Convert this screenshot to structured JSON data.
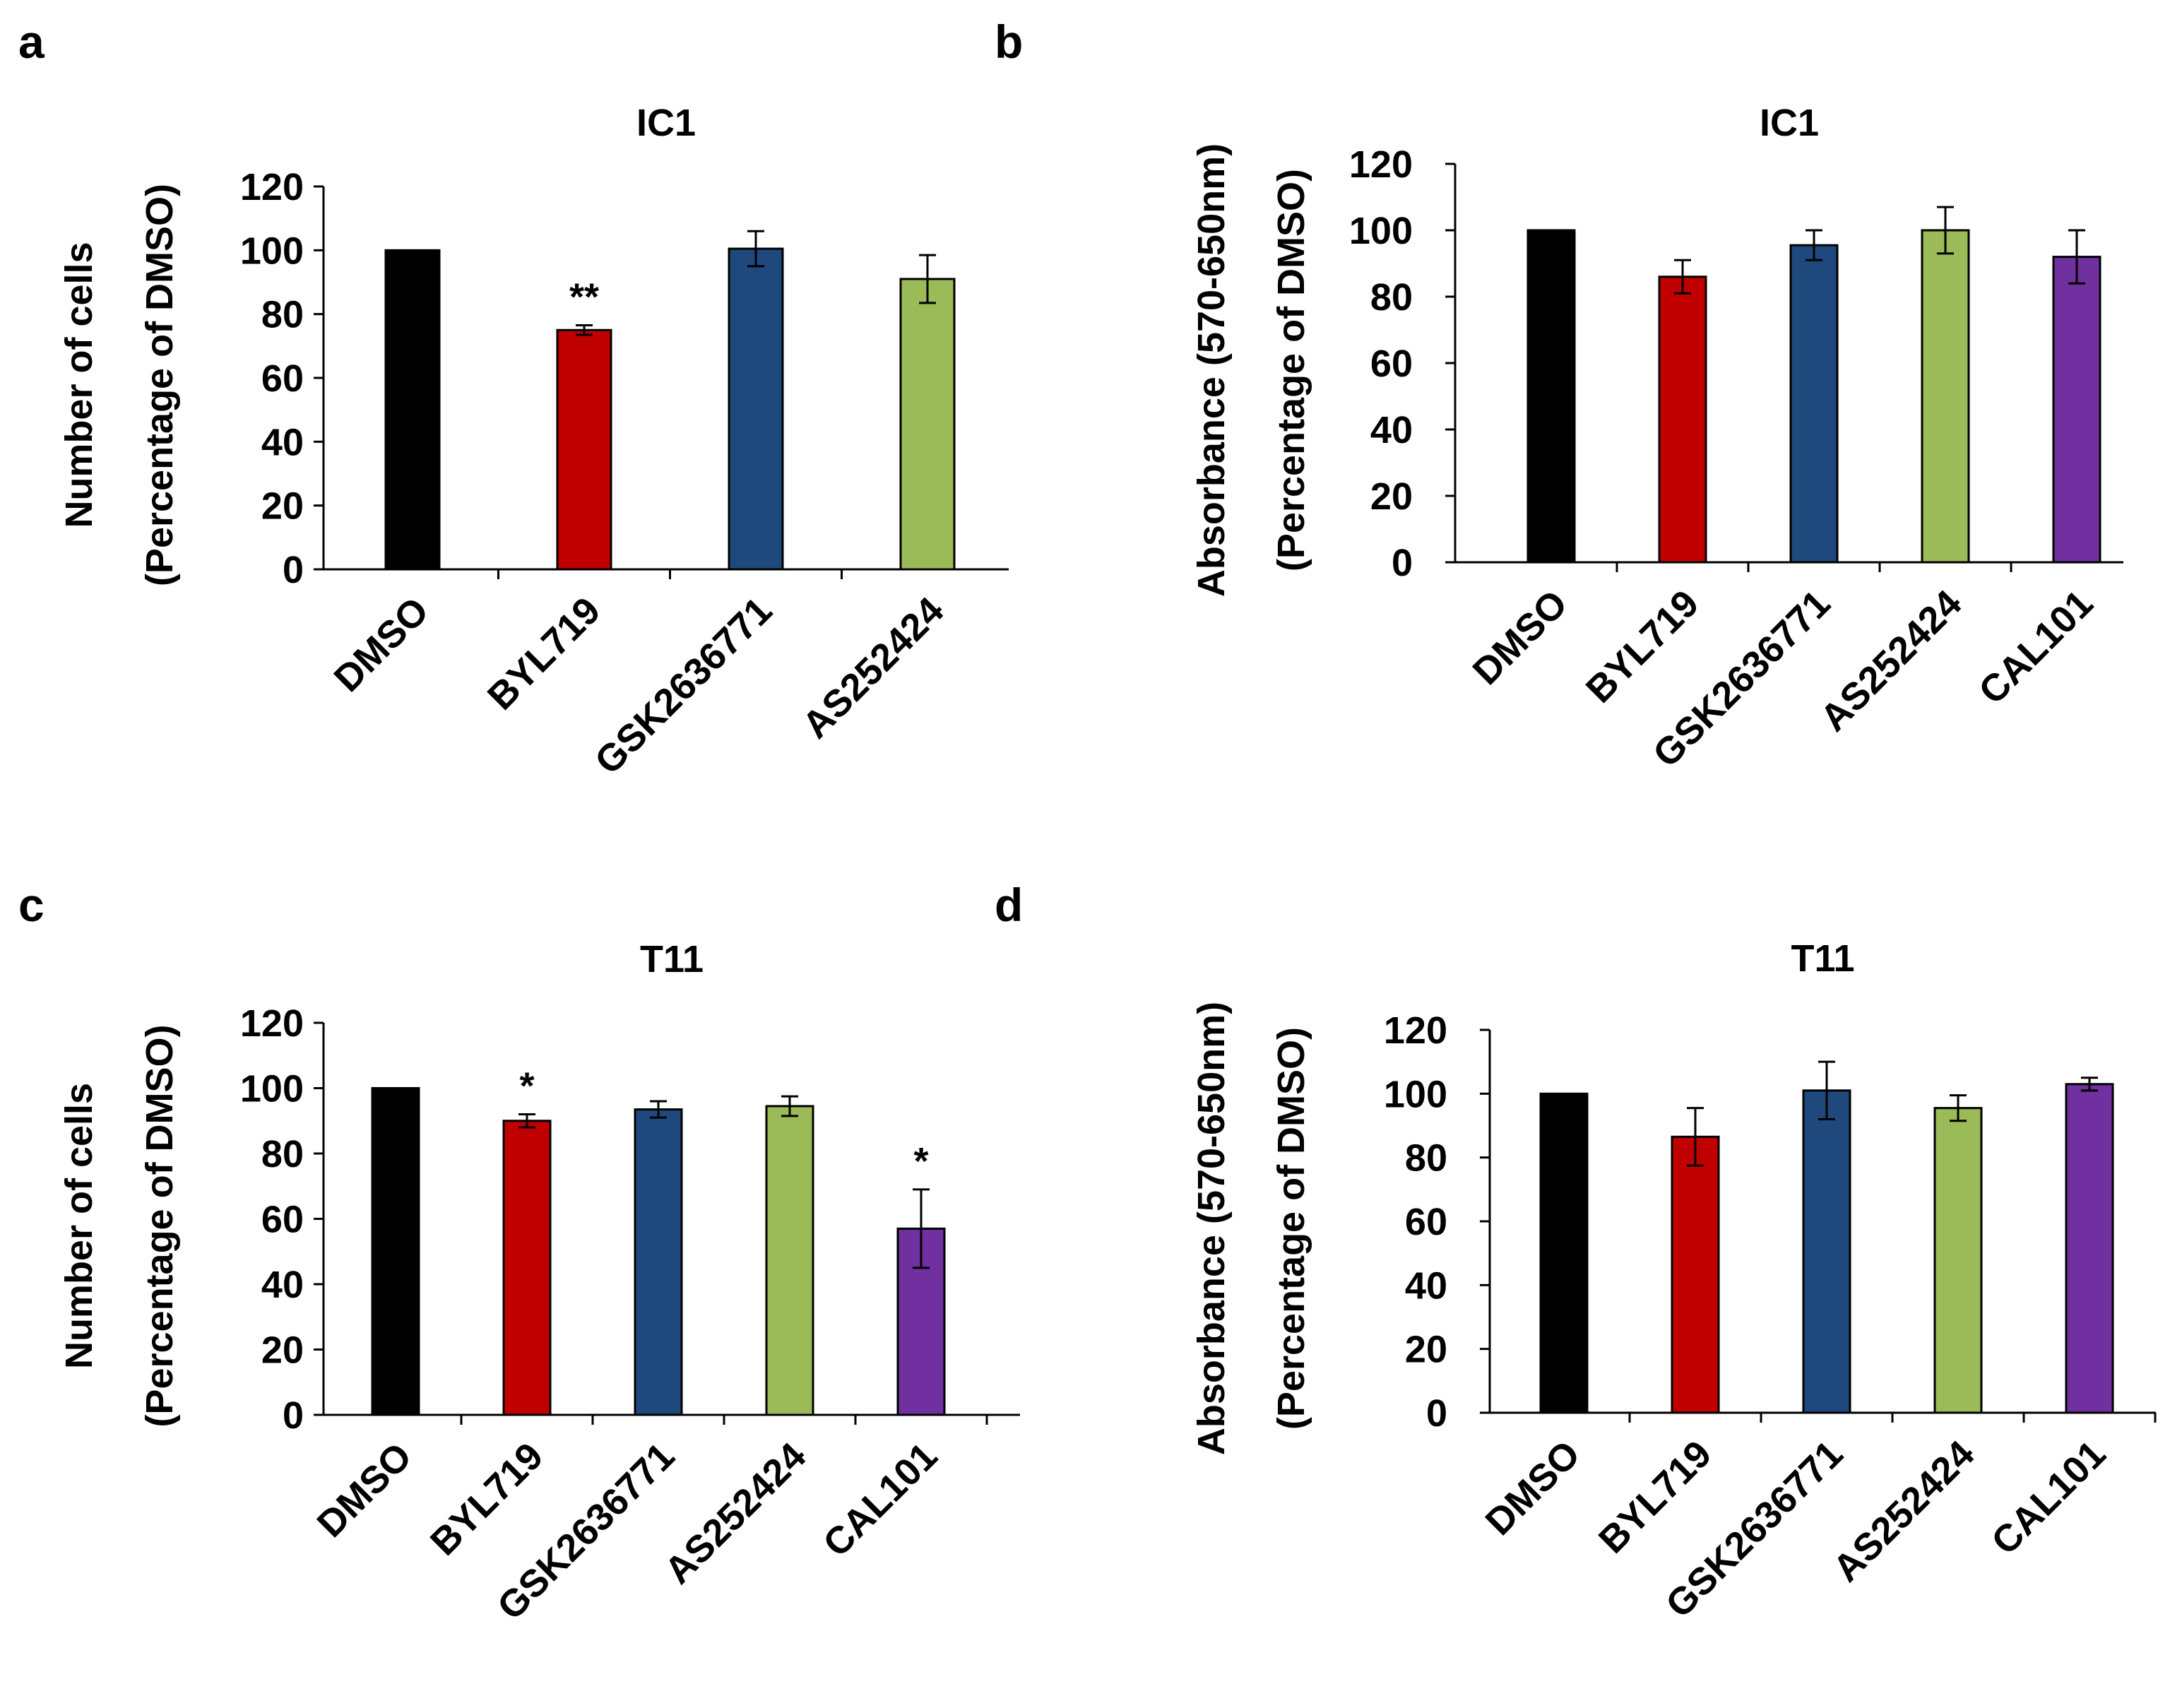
{
  "chart_data": [
    {
      "panel": "a",
      "type": "bar",
      "title": "IC1",
      "ylabel": [
        "Number of cells",
        "(Percentage of DMSO)"
      ],
      "ylim": [
        0,
        120
      ],
      "yticks": [
        "0",
        "20",
        "40",
        "60",
        "80",
        "100",
        "120"
      ],
      "categories": [
        "DMSO",
        "BYL719",
        "GSK2636771",
        "AS252424"
      ],
      "values": [
        100,
        75,
        100.5,
        91
      ],
      "errors": [
        0,
        1.5,
        5.5,
        7.5
      ],
      "colors": [
        "#000000",
        "#c00000",
        "#1f497d",
        "#9bbb59"
      ],
      "annotations": [
        "",
        "**",
        "",
        ""
      ]
    },
    {
      "panel": "b",
      "type": "bar",
      "title": "IC1",
      "ylabel": [
        "Absorbance (570-650nm)",
        "(Percentage of DMSO)"
      ],
      "ylim": [
        0,
        120
      ],
      "yticks": [
        "0",
        "20",
        "40",
        "60",
        "80",
        "100",
        "120"
      ],
      "categories": [
        "DMSO",
        "BYL719",
        "GSK2636771",
        "AS252424",
        "CAL101"
      ],
      "values": [
        100,
        86,
        95.5,
        100,
        92
      ],
      "errors": [
        0,
        5,
        4.5,
        7,
        8
      ],
      "colors": [
        "#000000",
        "#c00000",
        "#1f497d",
        "#9bbb59",
        "#7030a0"
      ],
      "annotations": [
        "",
        "",
        "",
        "",
        ""
      ]
    },
    {
      "panel": "c",
      "type": "bar",
      "title": "T11",
      "ylabel": [
        "Number of cells",
        "(Percentage of DMSO)"
      ],
      "ylim": [
        0,
        120
      ],
      "yticks": [
        "0",
        "20",
        "40",
        "60",
        "80",
        "100",
        "120"
      ],
      "categories": [
        "DMSO",
        "BYL719",
        "GSK2636771",
        "AS252424",
        "CAL101"
      ],
      "values": [
        100,
        90,
        93.5,
        94.5,
        57
      ],
      "errors": [
        0,
        2,
        2.5,
        3,
        12
      ],
      "colors": [
        "#000000",
        "#c00000",
        "#1f497d",
        "#9bbb59",
        "#7030a0"
      ],
      "annotations": [
        "",
        "*",
        "",
        "",
        "*"
      ]
    },
    {
      "panel": "d",
      "type": "bar",
      "title": "T11",
      "ylabel": [
        "Absorbance (570-650nm)",
        "(Percentage of DMSO)"
      ],
      "ylim": [
        0,
        120
      ],
      "yticks": [
        "0",
        "20",
        "40",
        "60",
        "80",
        "100",
        "120"
      ],
      "categories": [
        "DMSO",
        "BYL719",
        "GSK2636771",
        "AS252424",
        "CAL101"
      ],
      "values": [
        100,
        86.5,
        101,
        95.5,
        103
      ],
      "errors": [
        0,
        9,
        9,
        4,
        2
      ],
      "colors": [
        "#000000",
        "#c00000",
        "#1f497d",
        "#9bbb59",
        "#7030a0"
      ],
      "annotations": [
        "",
        "",
        "",
        "",
        ""
      ]
    }
  ]
}
